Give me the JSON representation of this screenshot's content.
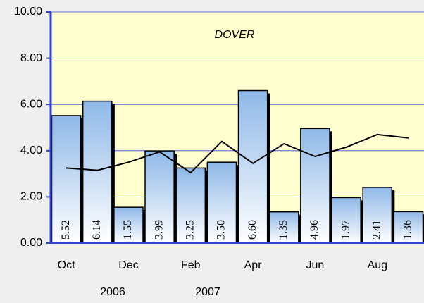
{
  "chart_data": {
    "type": "bar",
    "title": "DOVER",
    "categories": [
      "Oct",
      null,
      "Dec",
      null,
      "Feb",
      null,
      "Apr",
      null,
      "Jun",
      null,
      "Aug",
      null
    ],
    "year_labels": [
      "2006",
      "2007"
    ],
    "values": [
      5.52,
      6.14,
      1.55,
      3.99,
      3.25,
      3.5,
      6.6,
      1.35,
      4.96,
      1.97,
      2.41,
      1.36
    ],
    "value_labels": [
      "5.52",
      "6.14",
      "1.55",
      "3.99",
      "3.25",
      "3.50",
      "6.60",
      "1.35",
      "4.96",
      "1.97",
      "2.41",
      "1.36"
    ],
    "color": "#8fb8e8",
    "line": {
      "values": [
        3.25,
        3.15,
        3.5,
        3.95,
        3.05,
        4.4,
        3.45,
        4.3,
        3.75,
        4.15,
        4.7,
        4.55
      ],
      "color": "#000000"
    },
    "ylim": [
      0,
      10
    ],
    "yticks": [
      {
        "value": 0,
        "label": "0.00"
      },
      {
        "value": 2,
        "label": "2.00"
      },
      {
        "value": 4,
        "label": "4.00"
      },
      {
        "value": 6,
        "label": "6.00"
      },
      {
        "value": 8,
        "label": "8.00"
      },
      {
        "value": 10,
        "label": "10.00"
      }
    ],
    "grid": true
  }
}
